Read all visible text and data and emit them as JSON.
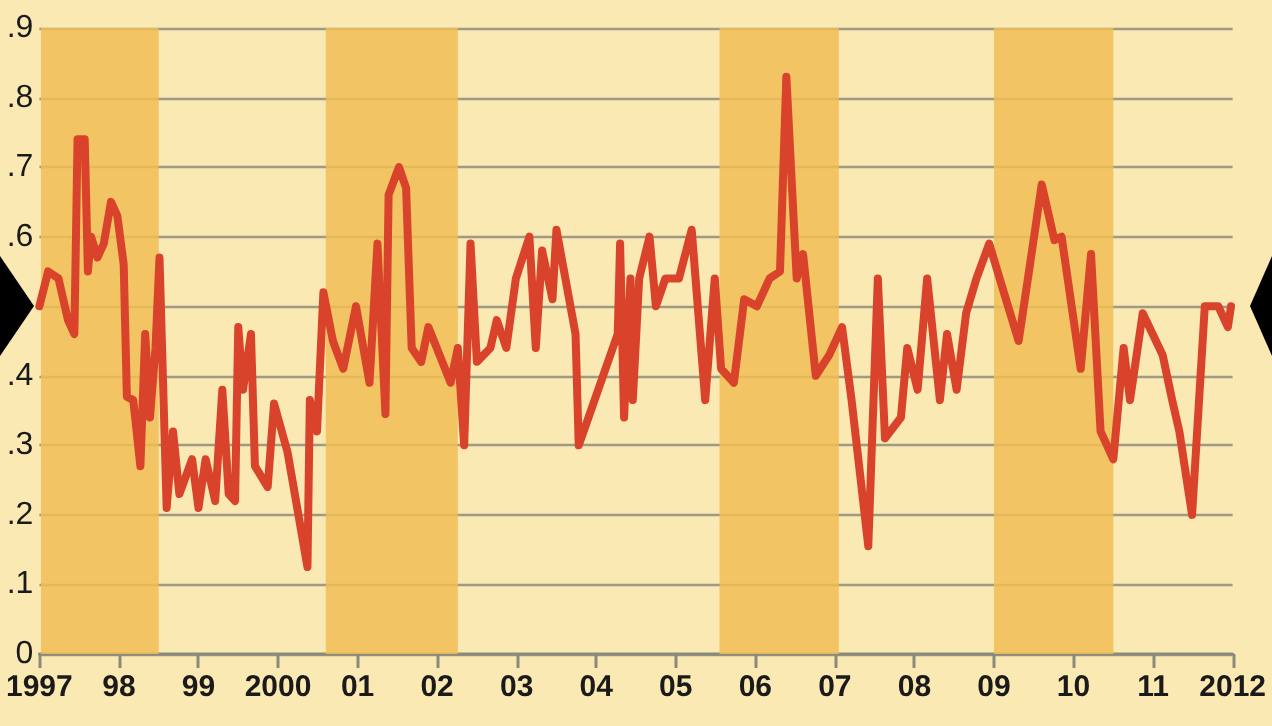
{
  "chart_data": {
    "type": "line",
    "x": [
      1997.0,
      1997.11,
      1997.24,
      1997.36,
      1997.44,
      1997.48,
      1997.57,
      1997.61,
      1997.65,
      1997.73,
      1997.81,
      1997.9,
      1997.98,
      1998.06,
      1998.1,
      1998.18,
      1998.27,
      1998.33,
      1998.39,
      1998.46,
      1998.51,
      1998.6,
      1998.68,
      1998.76,
      1998.92,
      1999.0,
      1999.09,
      1999.21,
      1999.3,
      1999.38,
      1999.46,
      1999.5,
      1999.56,
      1999.66,
      1999.71,
      1999.87,
      1999.95,
      2000.12,
      2000.37,
      2000.4,
      2000.49,
      2000.57,
      2000.69,
      2000.82,
      2000.98,
      2001.15,
      2001.25,
      2001.35,
      2001.39,
      2001.52,
      2001.61,
      2001.68,
      2001.8,
      2001.89,
      2002.17,
      2002.26,
      2002.34,
      2002.42,
      2002.5,
      2002.67,
      2002.75,
      2002.87,
      2002.99,
      2003.16,
      2003.24,
      2003.32,
      2003.45,
      2003.5,
      2003.74,
      2003.78,
      2004.27,
      2004.3,
      2004.35,
      2004.43,
      2004.46,
      2004.54,
      2004.67,
      2004.75,
      2004.87,
      2005.04,
      2005.2,
      2005.37,
      2005.49,
      2005.57,
      2005.73,
      2005.86,
      2006.02,
      2006.18,
      2006.31,
      2006.39,
      2006.52,
      2006.6,
      2006.76,
      2006.93,
      2007.09,
      2007.21,
      2007.42,
      2007.54,
      2007.63,
      2007.83,
      2007.91,
      2008.04,
      2008.16,
      2008.32,
      2008.41,
      2008.53,
      2008.65,
      2008.78,
      2008.94,
      2009.15,
      2009.31,
      2009.44,
      2009.6,
      2009.76,
      2009.85,
      2010.09,
      2010.22,
      2010.34,
      2010.5,
      2010.63,
      2010.71,
      2010.87,
      2011.12,
      2011.24,
      2011.33,
      2011.49,
      2011.65,
      2011.82,
      2011.94,
      2011.98
    ],
    "series": [
      {
        "color": "#d9432b",
        "values": [
          0.5,
          0.55,
          0.54,
          0.48,
          0.46,
          0.74,
          0.74,
          0.55,
          0.6,
          0.57,
          0.59,
          0.65,
          0.63,
          0.56,
          0.37,
          0.365,
          0.27,
          0.46,
          0.34,
          0.44,
          0.57,
          0.21,
          0.32,
          0.23,
          0.28,
          0.21,
          0.28,
          0.22,
          0.38,
          0.23,
          0.22,
          0.47,
          0.38,
          0.46,
          0.27,
          0.24,
          0.36,
          0.29,
          0.125,
          0.365,
          0.32,
          0.52,
          0.45,
          0.41,
          0.5,
          0.39,
          0.59,
          0.345,
          0.66,
          0.7,
          0.67,
          0.44,
          0.42,
          0.47,
          0.39,
          0.44,
          0.3,
          0.59,
          0.42,
          0.44,
          0.48,
          0.44,
          0.54,
          0.6,
          0.44,
          0.58,
          0.51,
          0.61,
          0.46,
          0.3,
          0.46,
          0.59,
          0.34,
          0.54,
          0.365,
          0.54,
          0.6,
          0.5,
          0.54,
          0.54,
          0.61,
          0.365,
          0.54,
          0.41,
          0.39,
          0.51,
          0.5,
          0.54,
          0.55,
          0.83,
          0.54,
          0.575,
          0.4,
          0.43,
          0.47,
          0.365,
          0.155,
          0.54,
          0.31,
          0.34,
          0.44,
          0.38,
          0.54,
          0.365,
          0.46,
          0.38,
          0.49,
          0.54,
          0.59,
          0.51,
          0.45,
          0.55,
          0.675,
          0.595,
          0.6,
          0.41,
          0.575,
          0.32,
          0.28,
          0.44,
          0.365,
          0.49,
          0.43,
          0.365,
          0.32,
          0.2,
          0.5,
          0.5,
          0.47,
          0.5
        ]
      }
    ],
    "xlim": [
      1997,
      2012
    ],
    "xticks": [
      {
        "value": 1997,
        "label": "1997"
      },
      {
        "value": 1998,
        "label": "98"
      },
      {
        "value": 1999,
        "label": "99"
      },
      {
        "value": 2000,
        "label": "2000"
      },
      {
        "value": 2001,
        "label": "01"
      },
      {
        "value": 2002,
        "label": "02"
      },
      {
        "value": 2003,
        "label": "03"
      },
      {
        "value": 2004,
        "label": "04"
      },
      {
        "value": 2005,
        "label": "05"
      },
      {
        "value": 2006,
        "label": "06"
      },
      {
        "value": 2007,
        "label": "07"
      },
      {
        "value": 2008,
        "label": "08"
      },
      {
        "value": 2009,
        "label": "09"
      },
      {
        "value": 2010,
        "label": "10"
      },
      {
        "value": 2011,
        "label": "11"
      },
      {
        "value": 2012,
        "label": "2012"
      }
    ],
    "ylim": [
      0,
      0.9
    ],
    "yticks": [
      0,
      {
        "value": 0.1,
        "label": ".1"
      },
      {
        "value": 0.2,
        "label": ".2"
      },
      {
        "value": 0.3,
        "label": ".3"
      },
      {
        "value": 0.4,
        "label": ".4"
      },
      {
        "value": 0.5,
        "label": null
      },
      {
        "value": 0.6,
        "label": ".6"
      },
      {
        "value": 0.7,
        "label": ".7"
      },
      {
        "value": 0.8,
        "label": ".8"
      },
      {
        "value": 0.9,
        "label": ".9"
      }
    ],
    "grid": "y",
    "marker": "none",
    "line_style": "solid",
    "bands": [
      {
        "axis": "x",
        "from": 1997.02,
        "to": 1998.5,
        "color": "#f1bd55"
      },
      {
        "axis": "x",
        "from": 2000.6,
        "to": 2002.26,
        "color": "#f1bd55"
      },
      {
        "axis": "x",
        "from": 2005.55,
        "to": 2007.05,
        "color": "#f1bd55"
      },
      {
        "axis": "x",
        "from": 2009.0,
        "to": 2010.5,
        "color": "#f1bd55"
      }
    ]
  }
}
